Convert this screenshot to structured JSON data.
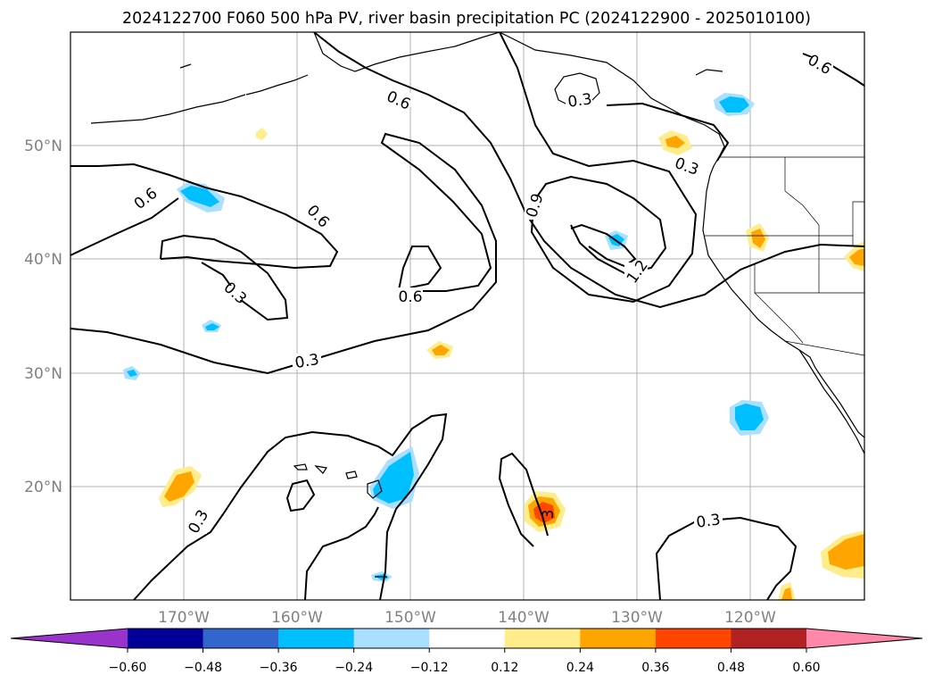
{
  "title": "2024122700 F060 500 hPa PV, river basin precipitation PC (2024122900 - 2025010100)",
  "lat_labels": [
    "50°N",
    "40°N",
    "30°N",
    "20°N"
  ],
  "lon_labels": [
    "170°W",
    "160°W",
    "150°W",
    "140°W",
    "130°W",
    "120°W"
  ],
  "colorbar": {
    "colors": [
      "#9933cc",
      "#000099",
      "#3366cc",
      "#00bfff",
      "#aadfff",
      "#ffffff",
      "#ffec8b",
      "#ffa500",
      "#ff4500",
      "#b22222",
      "#ff88aa"
    ],
    "labels": [
      "−0.60",
      "−0.48",
      "−0.36",
      "−0.24",
      "−0.12",
      "0.12",
      "0.24",
      "0.36",
      "0.48",
      "0.60"
    ]
  },
  "contour_labels": [
    {
      "text": "0.6"
    },
    {
      "text": "0.6"
    },
    {
      "text": "0.6"
    },
    {
      "text": "0.6"
    },
    {
      "text": "0.3"
    },
    {
      "text": "0.3"
    },
    {
      "text": "0.3"
    },
    {
      "text": "0.9"
    },
    {
      "text": "1.2"
    },
    {
      "text": "0.6"
    },
    {
      "text": "0.3"
    },
    {
      "text": "0.3"
    },
    {
      "text": "0.3"
    },
    {
      "text": "3"
    }
  ]
}
